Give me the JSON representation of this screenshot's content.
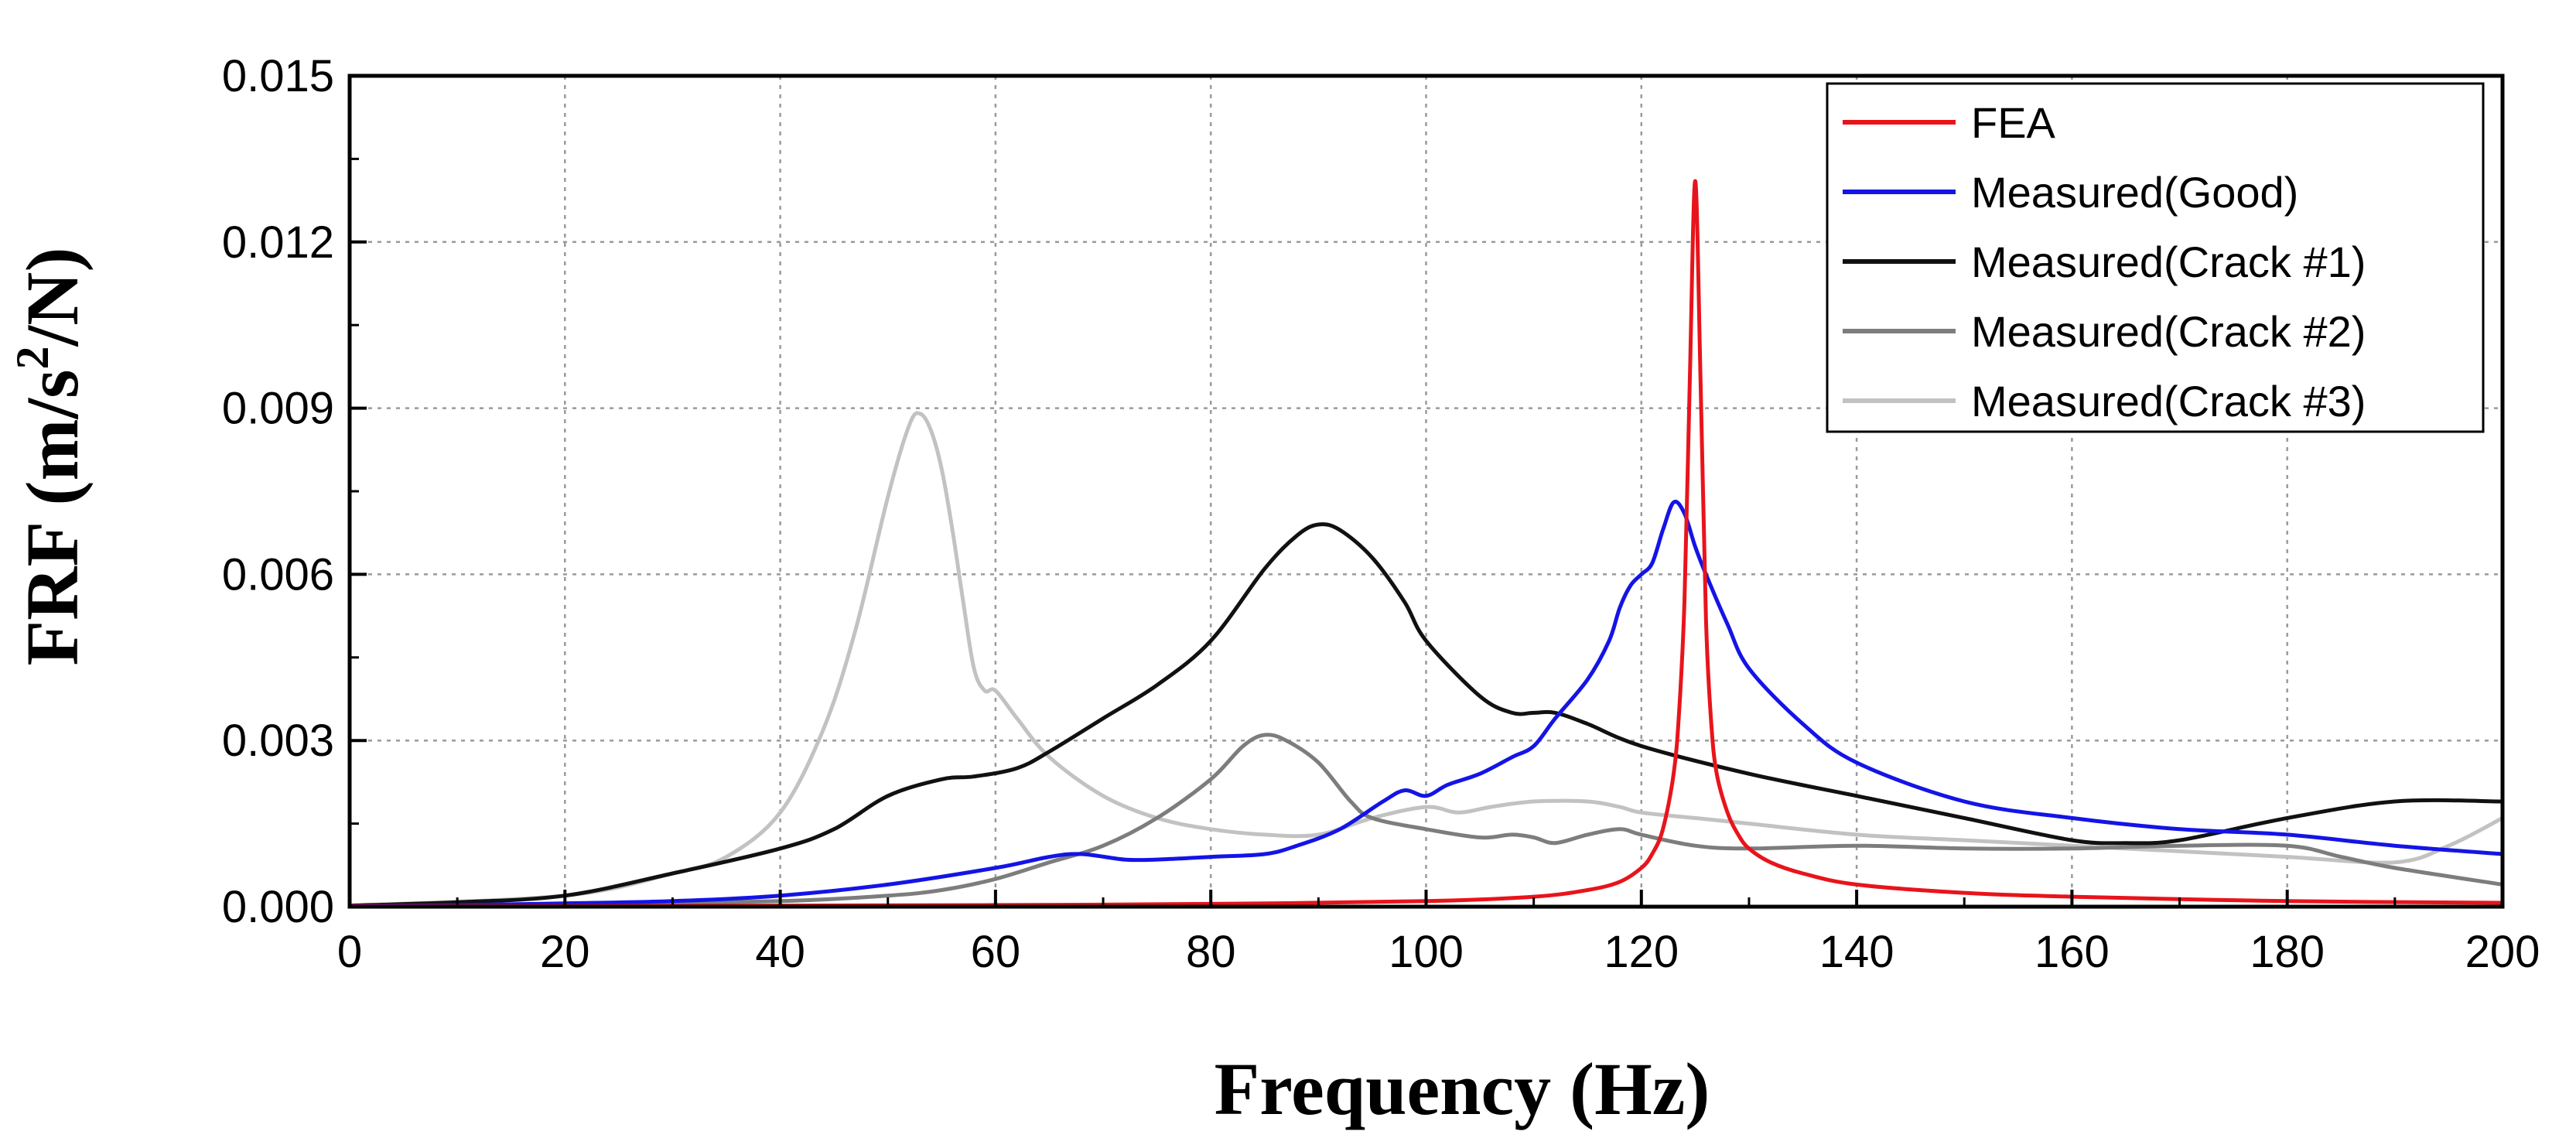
{
  "chart_data": {
    "type": "line",
    "title": "",
    "xlabel": "Frequency (Hz)",
    "ylabel": {
      "prefix": "FRF (m/s",
      "sup": "2",
      "suffix": "/N)"
    },
    "xlim": [
      0,
      200
    ],
    "ylim": [
      0,
      0.015
    ],
    "x_ticks": [
      0,
      20,
      40,
      60,
      80,
      100,
      120,
      140,
      160,
      180,
      200
    ],
    "x_tick_labels": [
      "0",
      "20",
      "40",
      "60",
      "80",
      "100",
      "120",
      "140",
      "160",
      "180",
      "200"
    ],
    "y_ticks": [
      0,
      0.003,
      0.006,
      0.009,
      0.012,
      0.015
    ],
    "y_tick_labels": [
      "0.000",
      "0.003",
      "0.006",
      "0.009",
      "0.012",
      "0.015"
    ],
    "grid": true,
    "legend_position": "top-right",
    "series": [
      {
        "name": "FEA",
        "color": "#e8141b",
        "x": [
          0,
          20,
          40,
          60,
          80,
          100,
          110,
          115,
          118,
          120,
          121,
          122,
          123,
          123.5,
          124,
          124.5,
          125,
          125.5,
          126,
          126.5,
          127,
          128,
          129,
          130,
          132,
          135,
          140,
          150,
          160,
          180,
          200
        ],
        "y": [
          1e-05,
          1e-05,
          2e-05,
          3e-05,
          5e-05,
          0.0001,
          0.00018,
          0.0003,
          0.00045,
          0.0007,
          0.00095,
          0.0014,
          0.0024,
          0.0035,
          0.0055,
          0.0095,
          0.0131,
          0.0095,
          0.0052,
          0.0033,
          0.0024,
          0.0017,
          0.0013,
          0.00105,
          0.0008,
          0.0006,
          0.0004,
          0.00025,
          0.00018,
          0.0001,
          7e-05
        ]
      },
      {
        "name": "Measured(Good)",
        "color": "#1414e6",
        "x": [
          0,
          10,
          20,
          30,
          40,
          50,
          60,
          65,
          68,
          72,
          75,
          80,
          85,
          88,
          92,
          96,
          98,
          100,
          102,
          105,
          108,
          110,
          112,
          115,
          117,
          118,
          119,
          120,
          121,
          122,
          123,
          124,
          125,
          126,
          128,
          130,
          135,
          140,
          150,
          160,
          170,
          180,
          190,
          200
        ],
        "y": [
          2e-05,
          3e-05,
          6e-05,
          0.0001,
          0.0002,
          0.0004,
          0.0007,
          0.0009,
          0.00095,
          0.00085,
          0.00085,
          0.0009,
          0.00095,
          0.0011,
          0.0014,
          0.0019,
          0.0021,
          0.002,
          0.0022,
          0.0024,
          0.0027,
          0.0029,
          0.0034,
          0.0041,
          0.0048,
          0.0054,
          0.0058,
          0.006,
          0.0062,
          0.0068,
          0.0073,
          0.0071,
          0.0065,
          0.006,
          0.0051,
          0.0043,
          0.0033,
          0.0026,
          0.0019,
          0.0016,
          0.0014,
          0.0013,
          0.0011,
          0.00095
        ]
      },
      {
        "name": "Measured(Crack #1)",
        "color": "#111111",
        "x": [
          0,
          10,
          20,
          30,
          40,
          45,
          50,
          55,
          58,
          62,
          65,
          70,
          75,
          80,
          85,
          88,
          90,
          92,
          95,
          98,
          100,
          105,
          108,
          110,
          112,
          115,
          120,
          130,
          140,
          150,
          160,
          165,
          170,
          180,
          190,
          200
        ],
        "y": [
          2e-05,
          8e-05,
          0.0002,
          0.0006,
          0.00105,
          0.0014,
          0.002,
          0.0023,
          0.00235,
          0.0025,
          0.0028,
          0.0034,
          0.004,
          0.0048,
          0.0061,
          0.0067,
          0.0069,
          0.0068,
          0.0063,
          0.0055,
          0.0048,
          0.0038,
          0.0035,
          0.0035,
          0.0035,
          0.0033,
          0.0029,
          0.0024,
          0.002,
          0.0016,
          0.0012,
          0.00115,
          0.0012,
          0.0016,
          0.0019,
          0.0019
        ]
      },
      {
        "name": "Measured(Crack #2)",
        "color": "#7d7d7d",
        "x": [
          0,
          20,
          40,
          50,
          55,
          60,
          65,
          70,
          75,
          80,
          83,
          85,
          87,
          90,
          93,
          95,
          100,
          105,
          108,
          110,
          112,
          115,
          118,
          120,
          125,
          130,
          140,
          150,
          160,
          170,
          180,
          185,
          190,
          200
        ],
        "y": [
          1e-05,
          3e-05,
          0.0001,
          0.0002,
          0.0003,
          0.0005,
          0.0008,
          0.0011,
          0.0016,
          0.0023,
          0.0029,
          0.0031,
          0.003,
          0.0026,
          0.0019,
          0.0016,
          0.0014,
          0.00125,
          0.0013,
          0.00125,
          0.00115,
          0.0013,
          0.0014,
          0.0013,
          0.0011,
          0.00105,
          0.0011,
          0.00105,
          0.00105,
          0.0011,
          0.0011,
          0.0009,
          0.0007,
          0.0004
        ]
      },
      {
        "name": "Measured(Crack #3)",
        "color": "#c2c2c2",
        "x": [
          0,
          20,
          30,
          35,
          40,
          44,
          47,
          50,
          52,
          53,
          54,
          55,
          56,
          57,
          58,
          59,
          60,
          62,
          65,
          70,
          75,
          80,
          85,
          90,
          95,
          100,
          103,
          106,
          110,
          115,
          118,
          120,
          125,
          130,
          140,
          150,
          160,
          170,
          180,
          190,
          195,
          200
        ],
        "y": [
          2e-05,
          0.0002,
          0.0006,
          0.0009,
          0.0017,
          0.0032,
          0.005,
          0.0074,
          0.0087,
          0.0089,
          0.0086,
          0.0079,
          0.0068,
          0.0055,
          0.0043,
          0.0039,
          0.0039,
          0.0034,
          0.0027,
          0.002,
          0.0016,
          0.0014,
          0.0013,
          0.0013,
          0.0016,
          0.0018,
          0.0017,
          0.0018,
          0.0019,
          0.0019,
          0.0018,
          0.0017,
          0.0016,
          0.0015,
          0.0013,
          0.0012,
          0.0011,
          0.001,
          0.0009,
          0.0008,
          0.0011,
          0.0016
        ]
      }
    ]
  }
}
